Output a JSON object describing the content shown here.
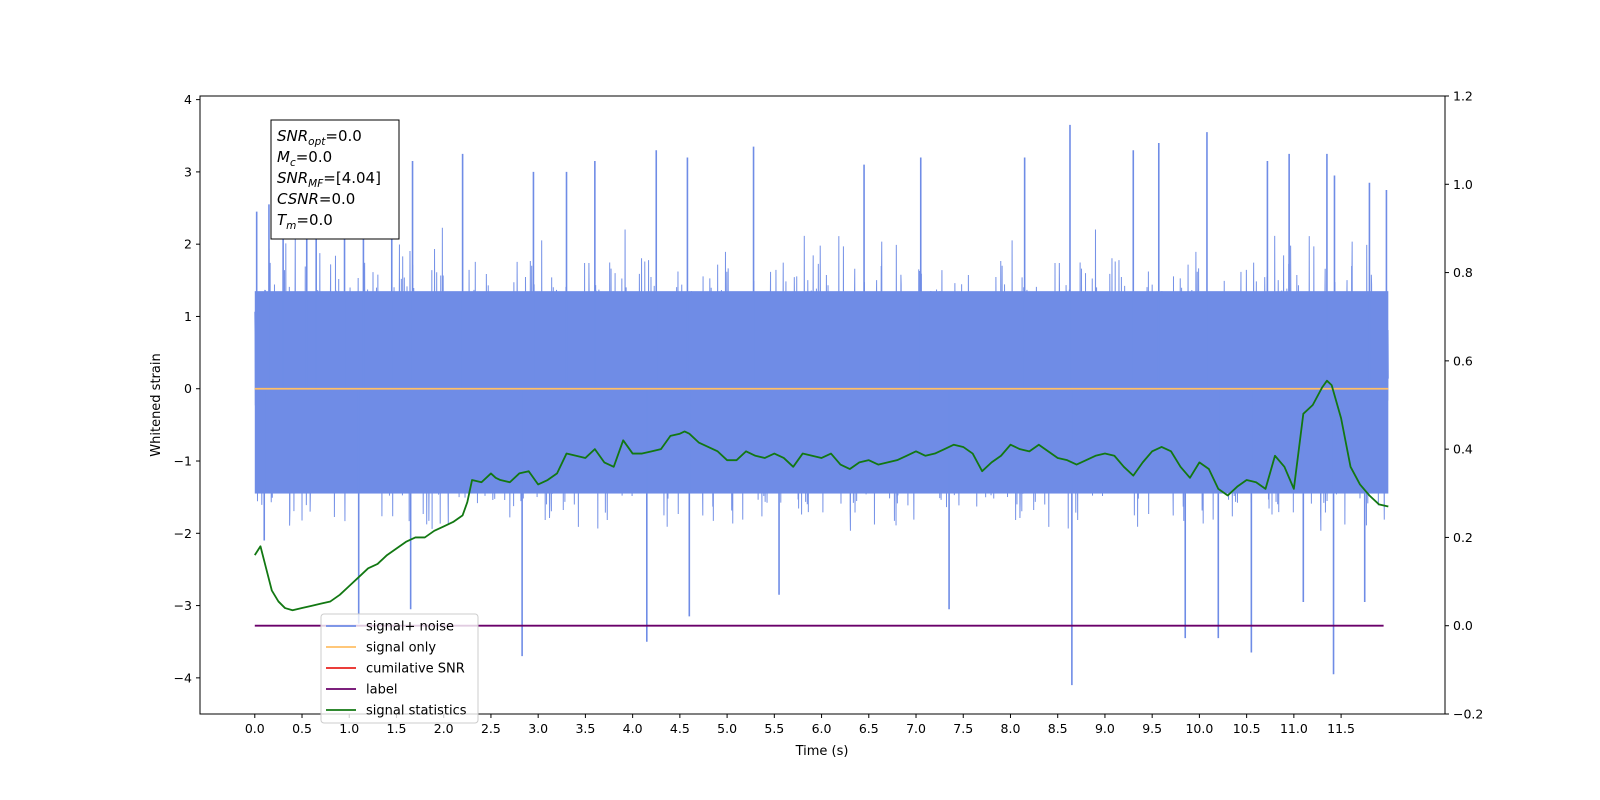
{
  "chart_data": {
    "type": "line",
    "xlabel": "Time (s)",
    "ylabel": "Whitened strain",
    "xlim": [
      -0.58,
      12.6
    ],
    "ylim": [
      -4.5,
      4.05
    ],
    "y2lim": [
      -0.2,
      1.2
    ],
    "x_ticks": [
      "0.0",
      "0.5",
      "1.0",
      "1.5",
      "2.0",
      "2.5",
      "3.0",
      "3.5",
      "4.0",
      "4.5",
      "5.0",
      "5.5",
      "6.0",
      "6.5",
      "7.0",
      "7.5",
      "8.0",
      "8.5",
      "9.0",
      "9.5",
      "10.0",
      "10.5",
      "11.0",
      "11.5"
    ],
    "y_ticks": [
      "4",
      "3",
      "2",
      "1",
      "0",
      "−1",
      "−2",
      "−3",
      "−4"
    ],
    "y2_ticks": [
      "1.2",
      "1.0",
      "0.8",
      "0.6",
      "0.4",
      "0.2",
      "0.0",
      "−0.2"
    ],
    "annotation": {
      "lines": [
        {
          "main": "SNR",
          "sub": "opt",
          "rest": "=0.0"
        },
        {
          "main": "M",
          "sub": "c",
          "rest": "=0.0"
        },
        {
          "main": "SNR",
          "sub": "MF",
          "rest": "=[4.04]"
        },
        {
          "main": "CSNR",
          "sub": "",
          "rest": "=0.0"
        },
        {
          "main": "T",
          "sub": "m",
          "rest": "=0.0"
        }
      ]
    },
    "legend": {
      "placement": "lower-left",
      "entries": [
        {
          "label": "signal+ noise",
          "color": "#6f8ce6"
        },
        {
          "label": "signal only",
          "color": "#ffbf66"
        },
        {
          "label": "cumilative SNR",
          "color": "#e8221e"
        },
        {
          "label": "label",
          "color": "#6a006a"
        },
        {
          "label": "signal statistics",
          "color": "#127812"
        }
      ]
    },
    "series": [
      {
        "name": "signal+ noise",
        "color": "#6f8ce6",
        "x_range": [
          0.0,
          12.0
        ],
        "typical_envelope": [
          -2.0,
          2.4
        ],
        "spikes": [
          {
            "x": 0.02,
            "y": 2.45
          },
          {
            "x": 0.15,
            "y": 2.55
          },
          {
            "x": 0.3,
            "y": 2.6
          },
          {
            "x": 0.55,
            "y": 2.8
          },
          {
            "x": 0.65,
            "y": 3.05
          },
          {
            "x": 0.95,
            "y": 2.95
          },
          {
            "x": 1.15,
            "y": 3.3
          },
          {
            "x": 1.45,
            "y": 3.0
          },
          {
            "x": 1.67,
            "y": 3.15
          },
          {
            "x": 2.2,
            "y": 3.25
          },
          {
            "x": 2.95,
            "y": 3.0
          },
          {
            "x": 3.3,
            "y": 3.0
          },
          {
            "x": 3.6,
            "y": 3.15
          },
          {
            "x": 4.25,
            "y": 3.3
          },
          {
            "x": 4.58,
            "y": 3.2
          },
          {
            "x": 5.28,
            "y": 3.35
          },
          {
            "x": 6.45,
            "y": 3.1
          },
          {
            "x": 7.05,
            "y": 3.2
          },
          {
            "x": 8.15,
            "y": 3.2
          },
          {
            "x": 8.63,
            "y": 3.65
          },
          {
            "x": 9.3,
            "y": 3.3
          },
          {
            "x": 9.57,
            "y": 3.4
          },
          {
            "x": 10.08,
            "y": 3.55
          },
          {
            "x": 10.72,
            "y": 3.15
          },
          {
            "x": 10.95,
            "y": 3.25
          },
          {
            "x": 11.35,
            "y": 3.25
          },
          {
            "x": 11.43,
            "y": 2.95
          },
          {
            "x": 11.8,
            "y": 2.85
          },
          {
            "x": 11.98,
            "y": 2.75
          },
          {
            "x": 0.1,
            "y": -2.1
          },
          {
            "x": 1.1,
            "y": -3.25
          },
          {
            "x": 1.65,
            "y": -3.05
          },
          {
            "x": 2.83,
            "y": -3.7
          },
          {
            "x": 4.15,
            "y": -3.5
          },
          {
            "x": 4.6,
            "y": -3.15
          },
          {
            "x": 5.55,
            "y": -2.85
          },
          {
            "x": 7.35,
            "y": -3.05
          },
          {
            "x": 8.65,
            "y": -4.1
          },
          {
            "x": 9.85,
            "y": -3.45
          },
          {
            "x": 10.2,
            "y": -3.45
          },
          {
            "x": 10.55,
            "y": -3.65
          },
          {
            "x": 11.1,
            "y": -2.95
          },
          {
            "x": 11.42,
            "y": -3.95
          },
          {
            "x": 11.75,
            "y": -2.95
          }
        ]
      },
      {
        "name": "signal only",
        "color": "#ffbf66",
        "x": [
          0.0,
          12.0
        ],
        "y": [
          0.0,
          0.0
        ]
      },
      {
        "name": "label",
        "color": "#6a006a",
        "axis": "right",
        "x": [
          0.0,
          11.95
        ],
        "y": [
          0.0,
          0.0
        ]
      },
      {
        "name": "signal statistics",
        "color": "#127812",
        "axis": "right",
        "x": [
          0.0,
          0.06,
          0.12,
          0.18,
          0.25,
          0.32,
          0.4,
          0.5,
          0.6,
          0.7,
          0.8,
          0.9,
          1.0,
          1.1,
          1.2,
          1.3,
          1.4,
          1.5,
          1.6,
          1.7,
          1.8,
          1.9,
          2.0,
          2.1,
          2.2,
          2.25,
          2.3,
          2.4,
          2.5,
          2.55,
          2.6,
          2.7,
          2.8,
          2.9,
          3.0,
          3.1,
          3.2,
          3.3,
          3.4,
          3.5,
          3.6,
          3.7,
          3.8,
          3.9,
          4.0,
          4.1,
          4.2,
          4.3,
          4.4,
          4.5,
          4.55,
          4.6,
          4.7,
          4.8,
          4.9,
          5.0,
          5.1,
          5.2,
          5.3,
          5.4,
          5.5,
          5.6,
          5.7,
          5.8,
          5.9,
          6.0,
          6.1,
          6.2,
          6.3,
          6.4,
          6.5,
          6.6,
          6.7,
          6.8,
          6.9,
          7.0,
          7.1,
          7.2,
          7.3,
          7.4,
          7.5,
          7.6,
          7.7,
          7.8,
          7.9,
          8.0,
          8.1,
          8.2,
          8.3,
          8.4,
          8.5,
          8.6,
          8.7,
          8.8,
          8.9,
          9.0,
          9.1,
          9.2,
          9.3,
          9.4,
          9.5,
          9.6,
          9.7,
          9.8,
          9.9,
          10.0,
          10.1,
          10.2,
          10.3,
          10.4,
          10.5,
          10.6,
          10.7,
          10.8,
          10.9,
          11.0,
          11.1,
          11.2,
          11.3,
          11.35,
          11.4,
          11.5,
          11.6,
          11.7,
          11.8,
          11.9,
          12.0
        ],
        "y": [
          0.16,
          0.18,
          0.13,
          0.08,
          0.055,
          0.04,
          0.035,
          0.04,
          0.045,
          0.05,
          0.055,
          0.07,
          0.09,
          0.11,
          0.13,
          0.14,
          0.16,
          0.175,
          0.19,
          0.2,
          0.2,
          0.215,
          0.225,
          0.235,
          0.25,
          0.28,
          0.33,
          0.325,
          0.345,
          0.335,
          0.33,
          0.325,
          0.345,
          0.35,
          0.32,
          0.33,
          0.345,
          0.39,
          0.385,
          0.38,
          0.4,
          0.37,
          0.36,
          0.42,
          0.39,
          0.39,
          0.395,
          0.4,
          0.43,
          0.435,
          0.44,
          0.435,
          0.415,
          0.405,
          0.395,
          0.375,
          0.375,
          0.395,
          0.385,
          0.38,
          0.39,
          0.38,
          0.36,
          0.39,
          0.385,
          0.38,
          0.39,
          0.365,
          0.355,
          0.37,
          0.375,
          0.365,
          0.37,
          0.375,
          0.385,
          0.395,
          0.385,
          0.39,
          0.4,
          0.41,
          0.405,
          0.39,
          0.35,
          0.37,
          0.385,
          0.41,
          0.4,
          0.395,
          0.41,
          0.395,
          0.38,
          0.375,
          0.365,
          0.375,
          0.385,
          0.39,
          0.385,
          0.36,
          0.34,
          0.37,
          0.395,
          0.405,
          0.395,
          0.36,
          0.335,
          0.37,
          0.355,
          0.31,
          0.295,
          0.315,
          0.33,
          0.325,
          0.31,
          0.385,
          0.36,
          0.31,
          0.48,
          0.5,
          0.54,
          0.555,
          0.545,
          0.47,
          0.36,
          0.32,
          0.295,
          0.275,
          0.27
        ]
      }
    ]
  }
}
